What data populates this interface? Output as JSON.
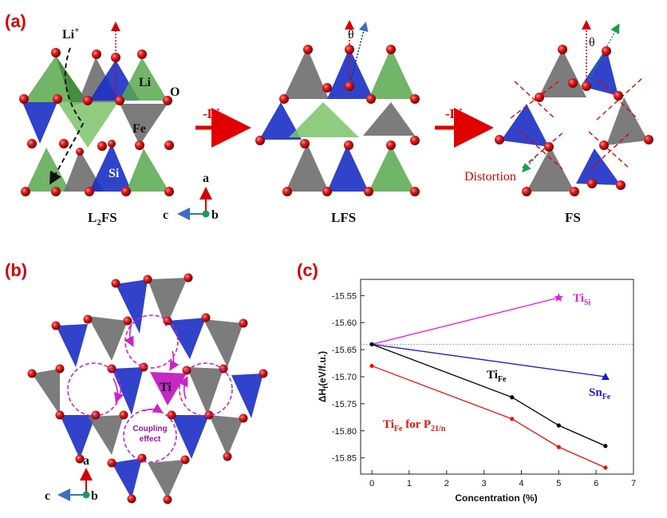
{
  "panels": {
    "a": {
      "label": "(a)",
      "structures": {
        "l2fs": "L",
        "l2fs_sub": "2",
        "l2fs_rest": "FS",
        "lfs": "LFS",
        "fs": "FS"
      },
      "arrow_text_1": "-Li",
      "arrow_text_2": "-Li",
      "li_plus": "Li",
      "li_plus_sup": "+",
      "atom_li": "Li",
      "atom_o": "O",
      "atom_fe": "Fe",
      "atom_si": "Si",
      "theta_1": "θ",
      "theta_2": "θ",
      "distortion": "Distortion",
      "axes": {
        "a": "a",
        "b": "b",
        "c": "c"
      }
    },
    "b": {
      "label": "(b)",
      "ti": "Ti",
      "coupling_1": "Coupling",
      "coupling_2": "effect",
      "axes": {
        "a": "a",
        "b": "b",
        "c": "c"
      }
    },
    "c": {
      "label": "(c)"
    }
  },
  "colors": {
    "si_tetra": "#1a2fc4",
    "fe_tetra": "#6e6e6e",
    "li_tetra": "#58a84e",
    "oxygen": "#d01010",
    "ti_tetra": "#c21cc2",
    "accent_red": "#e00000"
  },
  "chart_data": {
    "type": "line",
    "xlabel": "Concentration (%)",
    "ylabel_main": "ΔH",
    "ylabel_sub": "f",
    "ylabel_rest": "(eV/f.u.)",
    "xlim": [
      -0.3,
      7
    ],
    "ylim": [
      -15.88,
      -15.52
    ],
    "xticks": [
      0,
      1,
      2,
      3,
      4,
      5,
      6,
      7
    ],
    "yticks": [
      -15.55,
      -15.6,
      -15.65,
      -15.7,
      -15.75,
      -15.8,
      -15.85
    ],
    "ytick_labels": [
      "-15.55",
      "-15.60",
      "-15.65",
      "-15.70",
      "-15.75",
      "-15.80",
      "-15.85"
    ],
    "reference_y": -15.64,
    "series": [
      {
        "name_main": "Ti",
        "name_sub": "Si",
        "color": "#e61ce6",
        "marker": "star",
        "x": [
          0,
          5
        ],
        "y": [
          -15.64,
          -15.554
        ]
      },
      {
        "name_main": "Sn",
        "name_sub": "Fe",
        "color": "#1a1ad6",
        "marker": "triangle",
        "x": [
          0,
          6.25
        ],
        "y": [
          -15.64,
          -15.7
        ]
      },
      {
        "name_main": "Ti",
        "name_sub": "Fe",
        "color": "#000000",
        "marker": "circle",
        "x": [
          0,
          3.75,
          5,
          6.25
        ],
        "y": [
          -15.64,
          -15.738,
          -15.79,
          -15.828
        ]
      },
      {
        "name_main": "Ti",
        "name_sub": "Fe",
        "name_rest": " for P",
        "name_rest_sub": "21/n",
        "color": "#ee1111",
        "marker": "circle",
        "x": [
          0,
          3.75,
          5,
          6.25
        ],
        "y": [
          -15.68,
          -15.778,
          -15.83,
          -15.868
        ]
      }
    ]
  }
}
